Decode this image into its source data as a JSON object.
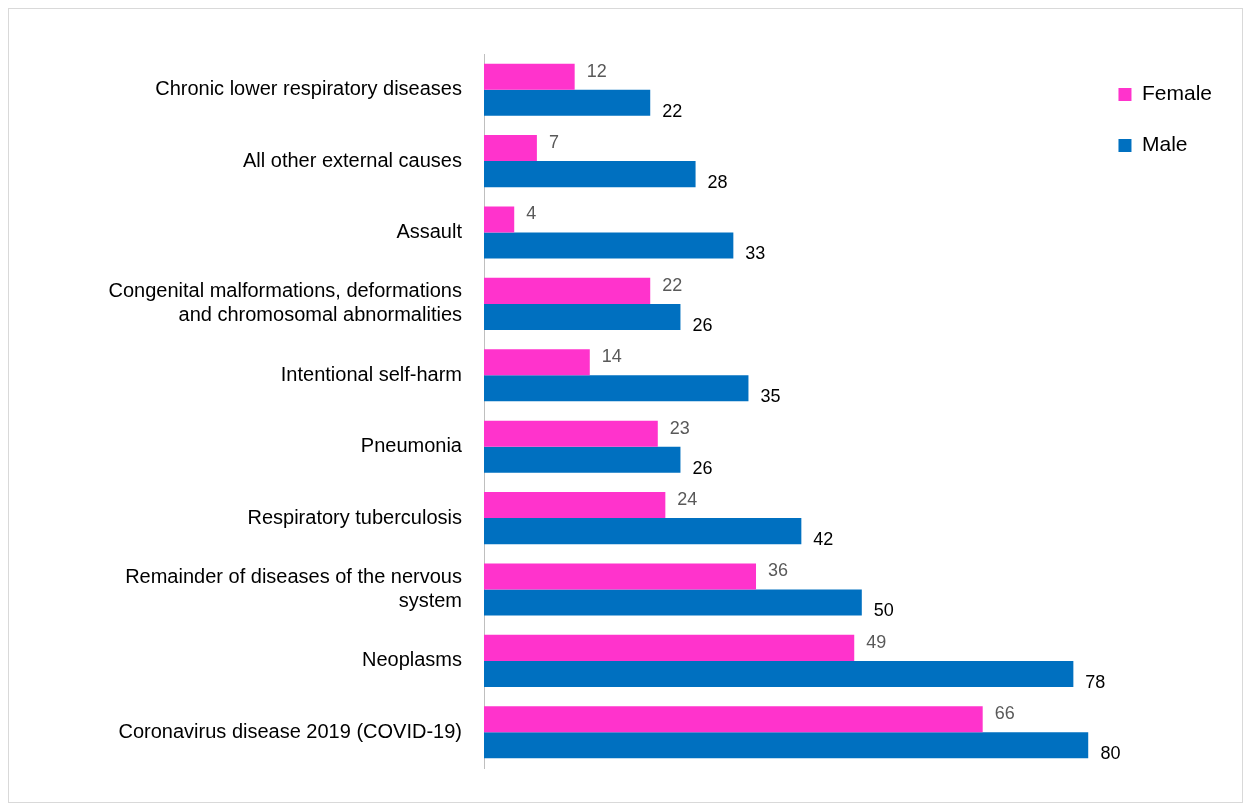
{
  "chart_data": {
    "type": "bar",
    "orientation": "horizontal",
    "data_labels": true,
    "legend": "top right",
    "tick_labels": "y",
    "categories": [
      "Chronic lower respiratory diseases",
      "All other external causes",
      "Assault",
      "Congenital malformations, deformations and chromosomal abnormalities",
      "Intentional self-harm",
      "Pneumonia",
      "Respiratory tuberculosis",
      "Remainder of diseases of the nervous system",
      "Neoplasms",
      "Coronavirus disease 2019 (COVID-19)"
    ],
    "series": [
      {
        "name": "Female",
        "color": "#ff33cc",
        "values": [
          12,
          7,
          4,
          22,
          14,
          23,
          24,
          36,
          49,
          66
        ]
      },
      {
        "name": "Male",
        "color": "#0070c0",
        "values": [
          22,
          28,
          33,
          26,
          35,
          26,
          42,
          50,
          78,
          80
        ]
      }
    ]
  }
}
